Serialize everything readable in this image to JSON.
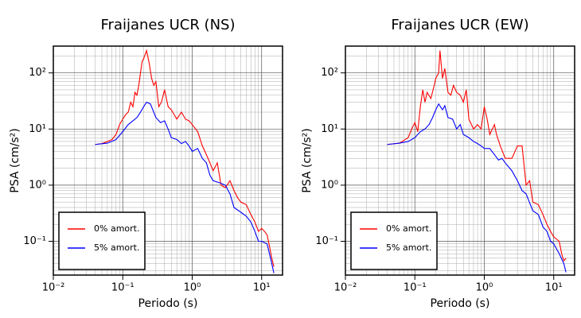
{
  "chart_data": [
    {
      "type": "line",
      "title": "Fraijanes UCR (NS)",
      "xlabel": "Periodo (s)",
      "ylabel": "PSA (cm/s²)",
      "log_x": true,
      "log_y": true,
      "grid": true,
      "legend": "lower left",
      "xlim": [
        0.01,
        20
      ],
      "ylim": [
        0.025,
        300
      ],
      "xticks": [
        {
          "value": 0.01,
          "label": "10⁻²"
        },
        {
          "value": 0.1,
          "label": "10⁻¹"
        },
        {
          "value": 1,
          "label": "10⁰"
        },
        {
          "value": 10,
          "label": "10¹"
        }
      ],
      "yticks": [
        {
          "value": 0.1,
          "label": "10⁻¹"
        },
        {
          "value": 1,
          "label": "10⁰"
        },
        {
          "value": 10,
          "label": "10¹"
        },
        {
          "value": 100,
          "label": "10²"
        }
      ],
      "series": [
        {
          "name": "0% amort.",
          "color": "#ff0000",
          "x": [
            0.04,
            0.05,
            0.06,
            0.07,
            0.08,
            0.09,
            0.1,
            0.11,
            0.12,
            0.13,
            0.14,
            0.15,
            0.16,
            0.17,
            0.18,
            0.19,
            0.2,
            0.22,
            0.24,
            0.26,
            0.28,
            0.3,
            0.33,
            0.36,
            0.4,
            0.45,
            0.5,
            0.55,
            0.6,
            0.7,
            0.8,
            0.9,
            1.0,
            1.2,
            1.4,
            1.6,
            1.8,
            2.0,
            2.3,
            2.6,
            3.0,
            3.5,
            4.0,
            4.5,
            5,
            6,
            7,
            8,
            9,
            10,
            11,
            12,
            13,
            14,
            15
          ],
          "values": [
            5.3,
            5.5,
            6,
            6.5,
            8,
            12,
            15,
            18,
            20,
            30,
            25,
            45,
            40,
            60,
            100,
            160,
            180,
            250,
            150,
            80,
            60,
            70,
            25,
            30,
            50,
            25,
            22,
            18,
            15,
            20,
            15,
            14,
            12,
            9,
            5,
            3.5,
            2.5,
            1.8,
            2.5,
            1.0,
            0.9,
            1.2,
            0.8,
            0.6,
            0.5,
            0.45,
            0.3,
            0.22,
            0.15,
            0.17,
            0.15,
            0.13,
            0.08,
            0.05,
            0.035
          ]
        },
        {
          "name": "5% amort.",
          "color": "#0000ff",
          "x": [
            0.04,
            0.06,
            0.08,
            0.1,
            0.12,
            0.14,
            0.16,
            0.18,
            0.2,
            0.22,
            0.25,
            0.3,
            0.35,
            0.4,
            0.45,
            0.5,
            0.6,
            0.7,
            0.8,
            0.9,
            1.0,
            1.2,
            1.4,
            1.6,
            1.8,
            2.0,
            2.5,
            3.0,
            3.5,
            4,
            5,
            6,
            7,
            8,
            9,
            10,
            12,
            14,
            15
          ],
          "values": [
            5.3,
            5.6,
            6.5,
            9,
            12,
            14,
            16,
            20,
            25,
            30,
            28,
            16,
            13,
            14,
            10,
            7,
            6.5,
            5.5,
            6,
            5,
            4,
            4.5,
            3,
            2.5,
            1.5,
            1.2,
            1.1,
            1.0,
            0.7,
            0.4,
            0.33,
            0.28,
            0.22,
            0.15,
            0.1,
            0.1,
            0.09,
            0.04,
            0.027
          ]
        }
      ]
    },
    {
      "type": "line",
      "title": "Fraijanes UCR (EW)",
      "xlabel": "Periodo (s)",
      "ylabel": "PSA (cm/s²)",
      "log_x": true,
      "log_y": true,
      "grid": true,
      "legend": "lower left",
      "xlim": [
        0.01,
        20
      ],
      "ylim": [
        0.025,
        300
      ],
      "xticks": [
        {
          "value": 0.01,
          "label": "10⁻²"
        },
        {
          "value": 0.1,
          "label": "10⁻¹"
        },
        {
          "value": 1,
          "label": "10⁰"
        },
        {
          "value": 10,
          "label": "10¹"
        }
      ],
      "yticks": [
        {
          "value": 0.1,
          "label": "10⁻¹"
        },
        {
          "value": 1,
          "label": "10⁰"
        },
        {
          "value": 10,
          "label": "10¹"
        },
        {
          "value": 100,
          "label": "10²"
        }
      ],
      "series": [
        {
          "name": "0% amort.",
          "color": "#ff0000",
          "x": [
            0.04,
            0.06,
            0.08,
            0.09,
            0.1,
            0.11,
            0.12,
            0.13,
            0.14,
            0.15,
            0.17,
            0.19,
            0.2,
            0.22,
            0.23,
            0.25,
            0.27,
            0.3,
            0.33,
            0.36,
            0.4,
            0.45,
            0.5,
            0.55,
            0.6,
            0.7,
            0.8,
            0.9,
            1.0,
            1.1,
            1.2,
            1.4,
            1.5,
            1.7,
            2.0,
            2.5,
            3.0,
            3.5,
            4,
            4.5,
            5,
            6,
            7,
            8,
            9,
            10,
            12,
            13,
            14,
            15
          ],
          "values": [
            5.3,
            5.6,
            7,
            10,
            13,
            9,
            25,
            50,
            30,
            45,
            35,
            60,
            80,
            100,
            250,
            80,
            120,
            45,
            40,
            60,
            45,
            40,
            30,
            50,
            15,
            10,
            12,
            10,
            25,
            15,
            8,
            12,
            8,
            5,
            3,
            3,
            5,
            5,
            1.0,
            1.2,
            0.5,
            0.45,
            0.3,
            0.2,
            0.15,
            0.12,
            0.1,
            0.06,
            0.045,
            0.05
          ]
        },
        {
          "name": "5% amort.",
          "color": "#0000ff",
          "x": [
            0.04,
            0.06,
            0.08,
            0.1,
            0.12,
            0.14,
            0.16,
            0.18,
            0.2,
            0.22,
            0.25,
            0.27,
            0.3,
            0.35,
            0.4,
            0.45,
            0.5,
            0.6,
            0.7,
            0.8,
            0.9,
            1.0,
            1.2,
            1.4,
            1.6,
            1.8,
            2.0,
            2.5,
            3.0,
            3.5,
            4,
            5,
            6,
            7,
            8,
            9,
            10,
            12,
            14,
            15
          ],
          "values": [
            5.3,
            5.6,
            6,
            7,
            9,
            10,
            12,
            16,
            22,
            28,
            22,
            26,
            16,
            15,
            10,
            12,
            8,
            7,
            6,
            5.5,
            5,
            4.5,
            4.5,
            3.5,
            2.8,
            3,
            2.5,
            1.8,
            1.2,
            0.8,
            0.7,
            0.35,
            0.3,
            0.18,
            0.15,
            0.1,
            0.09,
            0.06,
            0.04,
            0.028
          ]
        }
      ]
    }
  ]
}
